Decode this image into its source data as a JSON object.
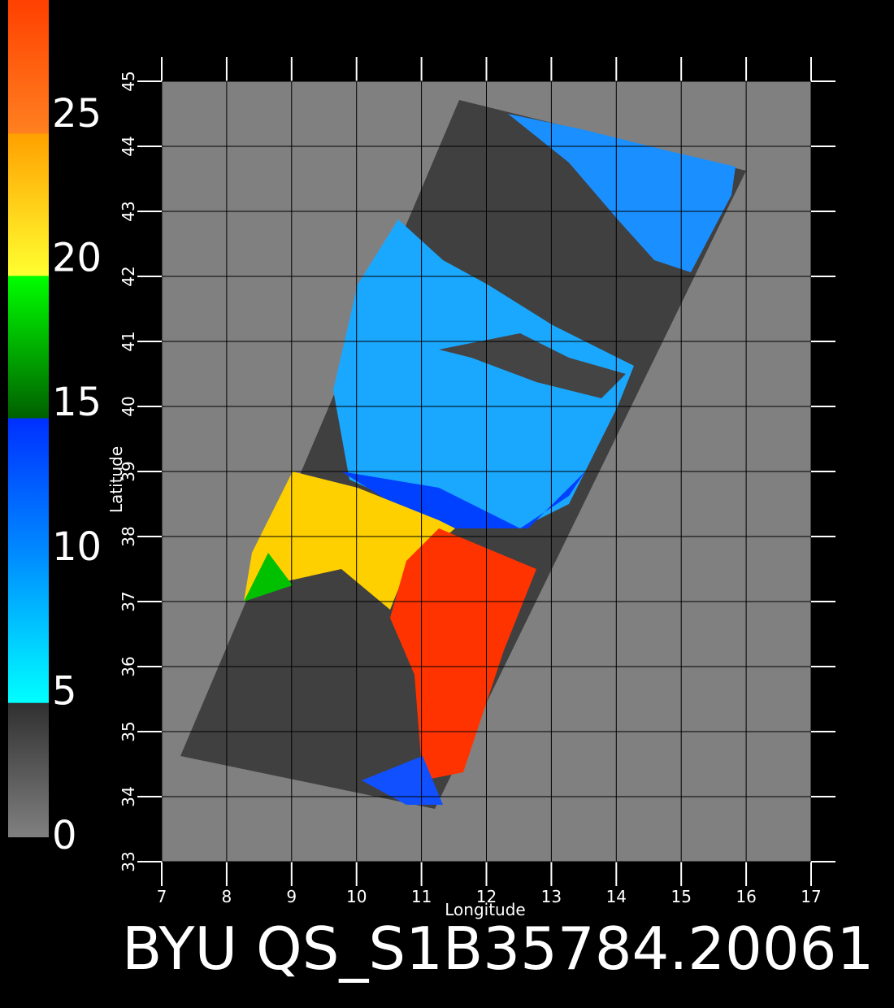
{
  "title": "BYU QS_S1B35784.20061",
  "colorbar": {
    "ticks": [
      0,
      5,
      10,
      15,
      20,
      25
    ],
    "top": 29
  },
  "axes": {
    "x_label": "Longitude",
    "y_label": "Latitude",
    "xticks": [
      7,
      8,
      9,
      10,
      11,
      12,
      13,
      14,
      15,
      16,
      17
    ],
    "yticks": [
      33,
      34,
      35,
      36,
      37,
      38,
      39,
      40,
      41,
      42,
      43,
      44,
      45
    ]
  }
}
